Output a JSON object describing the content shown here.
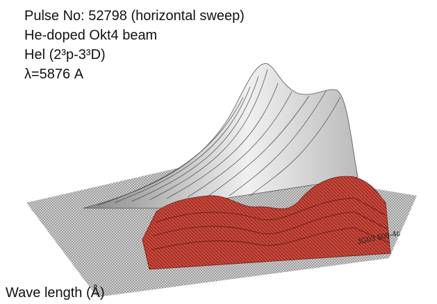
{
  "header": {
    "lines": [
      "Pulse No: 52798 (horizontal sweep)",
      "He-doped Okt4 beam",
      "Hel (2³p-3³D)",
      "λ=5876 A"
    ]
  },
  "figure": {
    "code": "JG03 509-4c",
    "axis_label": "Wave length (Å)"
  }
}
